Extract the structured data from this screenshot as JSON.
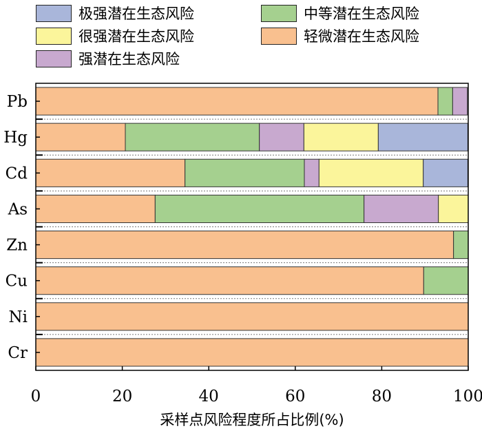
{
  "chart_data": {
    "type": "bar",
    "orientation": "horizontal",
    "stacked": true,
    "xlabel": "采样点风险程度所占比例(%)",
    "ylabel": "",
    "xlim": [
      0,
      100
    ],
    "xticks": [
      0,
      20,
      40,
      60,
      80,
      100
    ],
    "categories": [
      "Pb",
      "Hg",
      "Cd",
      "As",
      "Zn",
      "Cu",
      "Ni",
      "Cr"
    ],
    "grid": false,
    "legend_position": "top",
    "legend_order": [
      "极强潜在生态风险",
      "中等潜在生态风险",
      "很强潜在生态风险",
      "轻微潜在生态风险",
      "强潜在生态风险"
    ],
    "series": [
      {
        "name": "轻微潜在生态风险",
        "color": "#F9C08F",
        "values": [
          93.0,
          20.7,
          34.5,
          27.6,
          96.6,
          89.7,
          100.0,
          100.0
        ]
      },
      {
        "name": "中等潜在生态风险",
        "color": "#A5D08F",
        "values": [
          3.4,
          31.0,
          27.6,
          48.3,
          3.4,
          10.3,
          0,
          0
        ]
      },
      {
        "name": "强潜在生态风险",
        "color": "#C8A9CF",
        "values": [
          3.4,
          10.3,
          3.4,
          17.2,
          0,
          0,
          0,
          0
        ]
      },
      {
        "name": "很强潜在生态风险",
        "color": "#FBF59B",
        "values": [
          0,
          17.2,
          24.1,
          6.9,
          0,
          0,
          0,
          0
        ]
      },
      {
        "name": "极强潜在生态风险",
        "color": "#A9B6DA",
        "values": [
          0,
          20.7,
          10.3,
          0,
          0,
          0,
          0,
          0
        ]
      }
    ]
  }
}
